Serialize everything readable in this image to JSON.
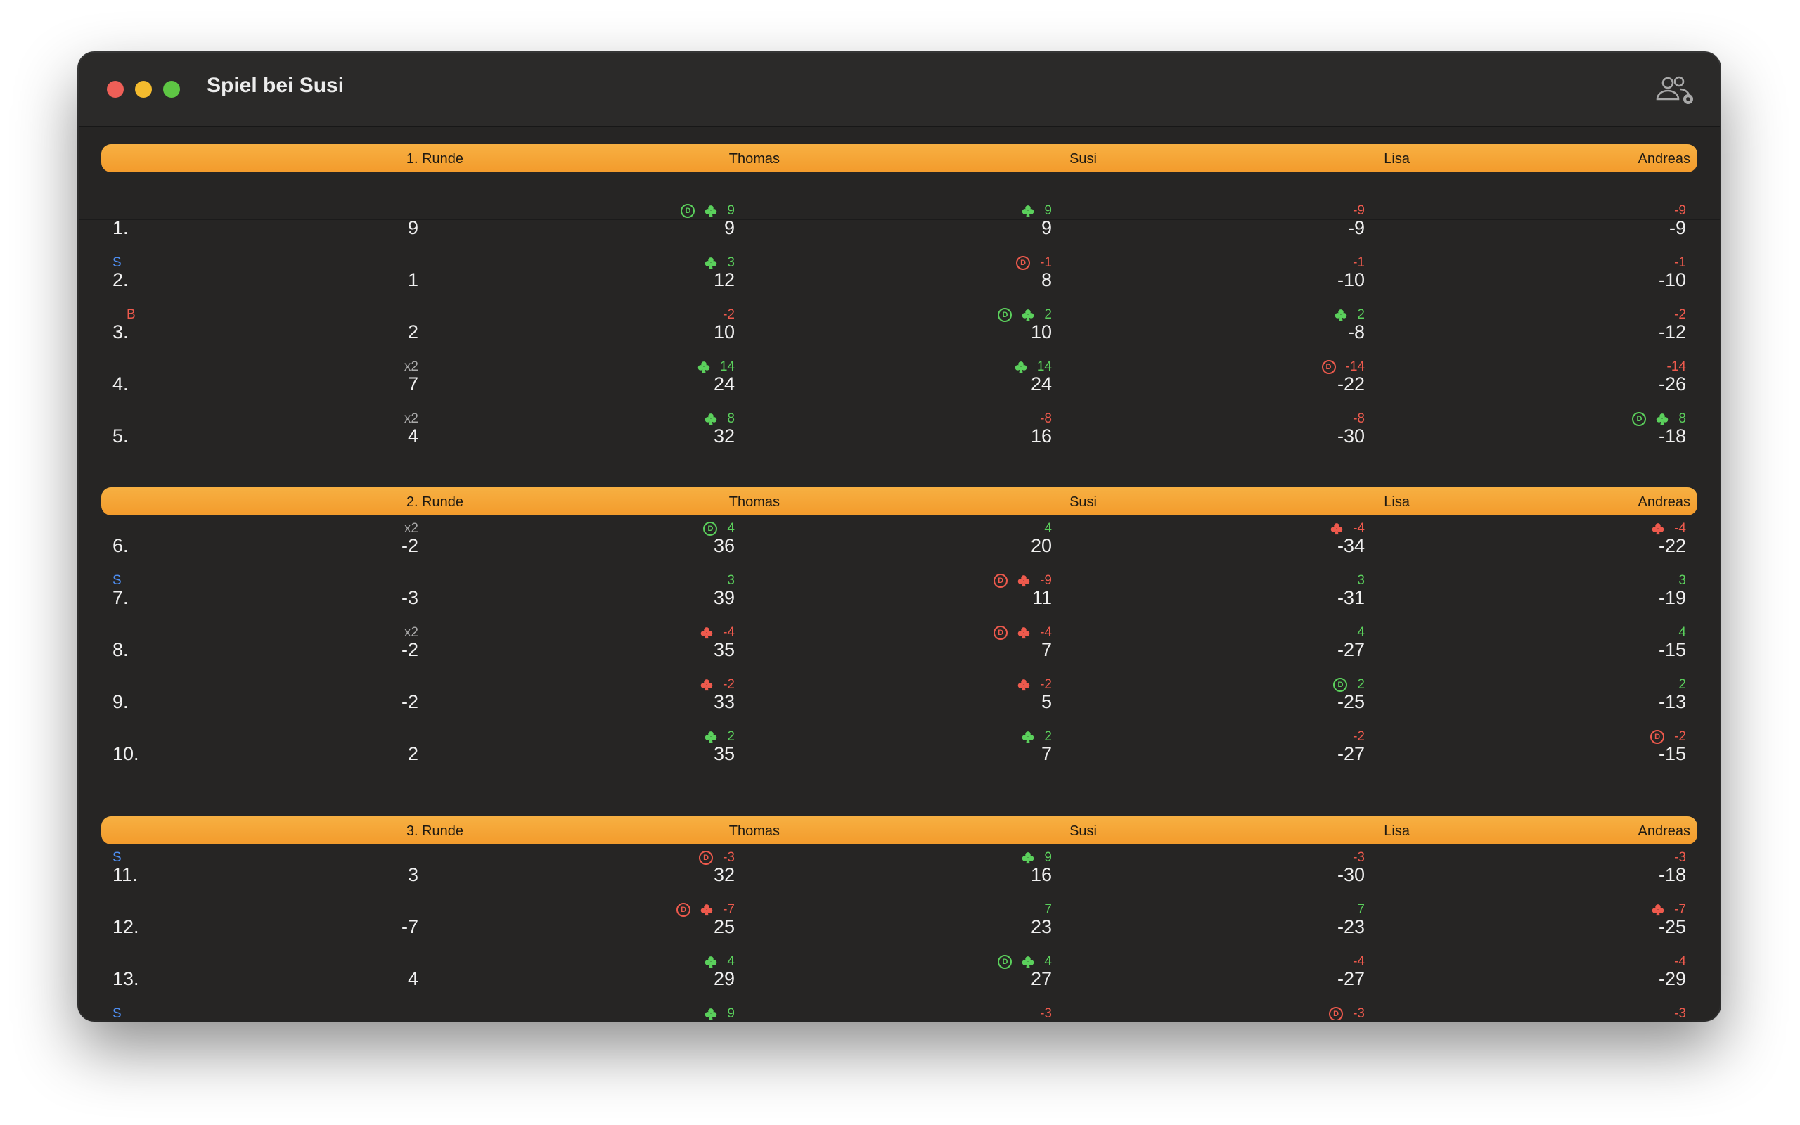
{
  "window": {
    "title": "Spiel bei Susi"
  },
  "colors": {
    "accent": "#f5a53a",
    "positive": "#5bd05c",
    "negative": "#ee5a4d",
    "special_s": "#4e8ef2"
  },
  "icons": {
    "toolbar": "players-settings-icon",
    "club": "club-suit-icon",
    "d_marker": "d-circle-icon"
  },
  "players": [
    "Thomas",
    "Susi",
    "Lisa",
    "Andreas"
  ],
  "rounds": [
    {
      "label": "1. Runde",
      "games": [
        {
          "idx": "1.",
          "mark": "",
          "mult": "",
          "value": "9",
          "cells": [
            {
              "delta": "9",
              "club": true,
              "d": true,
              "total": "9"
            },
            {
              "delta": "9",
              "club": true,
              "d": false,
              "total": "9"
            },
            {
              "delta": "-9",
              "club": false,
              "d": false,
              "total": "-9"
            },
            {
              "delta": "-9",
              "club": false,
              "d": false,
              "total": "-9"
            }
          ]
        },
        {
          "idx": "2.",
          "mark": "S",
          "mult": "",
          "value": "1",
          "cells": [
            {
              "delta": "3",
              "club": true,
              "d": false,
              "total": "12"
            },
            {
              "delta": "-1",
              "club": false,
              "d": true,
              "total": "8"
            },
            {
              "delta": "-1",
              "club": false,
              "d": false,
              "total": "-10"
            },
            {
              "delta": "-1",
              "club": false,
              "d": false,
              "total": "-10"
            }
          ]
        },
        {
          "idx": "3.",
          "mark": "B",
          "mult": "",
          "value": "2",
          "cells": [
            {
              "delta": "-2",
              "club": false,
              "d": false,
              "total": "10"
            },
            {
              "delta": "2",
              "club": true,
              "d": true,
              "total": "10"
            },
            {
              "delta": "2",
              "club": true,
              "d": false,
              "total": "-8"
            },
            {
              "delta": "-2",
              "club": false,
              "d": false,
              "total": "-12"
            }
          ]
        },
        {
          "idx": "4.",
          "mark": "",
          "mult": "x2",
          "value": "7",
          "cells": [
            {
              "delta": "14",
              "club": true,
              "d": false,
              "total": "24"
            },
            {
              "delta": "14",
              "club": true,
              "d": false,
              "total": "24"
            },
            {
              "delta": "-14",
              "club": false,
              "d": true,
              "total": "-22"
            },
            {
              "delta": "-14",
              "club": false,
              "d": false,
              "total": "-26"
            }
          ]
        },
        {
          "idx": "5.",
          "mark": "",
          "mult": "x2",
          "value": "4",
          "cells": [
            {
              "delta": "8",
              "club": true,
              "d": false,
              "total": "32"
            },
            {
              "delta": "-8",
              "club": false,
              "d": false,
              "total": "16"
            },
            {
              "delta": "-8",
              "club": false,
              "d": false,
              "total": "-30"
            },
            {
              "delta": "8",
              "club": true,
              "d": true,
              "total": "-18"
            }
          ]
        }
      ]
    },
    {
      "label": "2. Runde",
      "games": [
        {
          "idx": "6.",
          "mark": "",
          "mult": "x2",
          "value": "-2",
          "cells": [
            {
              "delta": "4",
              "club": false,
              "d": true,
              "total": "36"
            },
            {
              "delta": "4",
              "club": false,
              "d": false,
              "total": "20"
            },
            {
              "delta": "-4",
              "club": true,
              "d": false,
              "total": "-34"
            },
            {
              "delta": "-4",
              "club": true,
              "d": false,
              "total": "-22"
            }
          ]
        },
        {
          "idx": "7.",
          "mark": "S",
          "mult": "",
          "value": "-3",
          "cells": [
            {
              "delta": "3",
              "club": false,
              "d": false,
              "total": "39"
            },
            {
              "delta": "-9",
              "club": true,
              "d": true,
              "total": "11"
            },
            {
              "delta": "3",
              "club": false,
              "d": false,
              "total": "-31"
            },
            {
              "delta": "3",
              "club": false,
              "d": false,
              "total": "-19"
            }
          ]
        },
        {
          "idx": "8.",
          "mark": "",
          "mult": "x2",
          "value": "-2",
          "cells": [
            {
              "delta": "-4",
              "club": true,
              "d": false,
              "total": "35"
            },
            {
              "delta": "-4",
              "club": true,
              "d": true,
              "total": "7"
            },
            {
              "delta": "4",
              "club": false,
              "d": false,
              "total": "-27"
            },
            {
              "delta": "4",
              "club": false,
              "d": false,
              "total": "-15"
            }
          ]
        },
        {
          "idx": "9.",
          "mark": "",
          "mult": "",
          "value": "-2",
          "cells": [
            {
              "delta": "-2",
              "club": true,
              "d": false,
              "total": "33"
            },
            {
              "delta": "-2",
              "club": true,
              "d": false,
              "total": "5"
            },
            {
              "delta": "2",
              "club": false,
              "d": true,
              "total": "-25"
            },
            {
              "delta": "2",
              "club": false,
              "d": false,
              "total": "-13"
            }
          ]
        },
        {
          "idx": "10.",
          "mark": "",
          "mult": "",
          "value": "2",
          "cells": [
            {
              "delta": "2",
              "club": true,
              "d": false,
              "total": "35"
            },
            {
              "delta": "2",
              "club": true,
              "d": false,
              "total": "7"
            },
            {
              "delta": "-2",
              "club": false,
              "d": false,
              "total": "-27"
            },
            {
              "delta": "-2",
              "club": false,
              "d": true,
              "total": "-15"
            }
          ]
        }
      ]
    },
    {
      "label": "3. Runde",
      "games": [
        {
          "idx": "11.",
          "mark": "S",
          "mult": "",
          "value": "3",
          "cells": [
            {
              "delta": "-3",
              "club": false,
              "d": true,
              "total": "32"
            },
            {
              "delta": "9",
              "club": true,
              "d": false,
              "total": "16"
            },
            {
              "delta": "-3",
              "club": false,
              "d": false,
              "total": "-30"
            },
            {
              "delta": "-3",
              "club": false,
              "d": false,
              "total": "-18"
            }
          ]
        },
        {
          "idx": "12.",
          "mark": "",
          "mult": "",
          "value": "-7",
          "cells": [
            {
              "delta": "-7",
              "club": true,
              "d": true,
              "total": "25"
            },
            {
              "delta": "7",
              "club": false,
              "d": false,
              "total": "23"
            },
            {
              "delta": "7",
              "club": false,
              "d": false,
              "total": "-23"
            },
            {
              "delta": "-7",
              "club": true,
              "d": false,
              "total": "-25"
            }
          ]
        },
        {
          "idx": "13.",
          "mark": "",
          "mult": "",
          "value": "4",
          "cells": [
            {
              "delta": "4",
              "club": true,
              "d": false,
              "total": "29"
            },
            {
              "delta": "4",
              "club": true,
              "d": true,
              "total": "27"
            },
            {
              "delta": "-4",
              "club": false,
              "d": false,
              "total": "-27"
            },
            {
              "delta": "-4",
              "club": false,
              "d": false,
              "total": "-29"
            }
          ]
        },
        {
          "idx": "",
          "mark": "S",
          "mult": "",
          "value": "",
          "cells": [
            {
              "delta": "9",
              "club": true,
              "d": false,
              "total": ""
            },
            {
              "delta": "-3",
              "club": false,
              "d": false,
              "total": ""
            },
            {
              "delta": "-3",
              "club": false,
              "d": true,
              "total": ""
            },
            {
              "delta": "-3",
              "club": false,
              "d": false,
              "total": ""
            }
          ]
        }
      ]
    }
  ]
}
